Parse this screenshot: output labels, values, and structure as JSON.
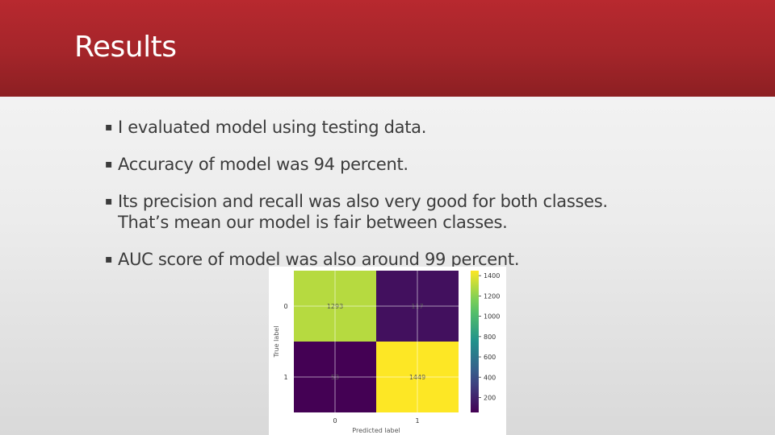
{
  "slide": {
    "title": "Results",
    "bullet_marker": "▪",
    "bullets": [
      {
        "lines": [
          "I evaluated model using testing data."
        ]
      },
      {
        "lines": [
          "Accuracy of model was 94 percent."
        ]
      },
      {
        "lines": [
          "Its precision and recall was also very good for both classes.",
          "That’s mean our model is fair between classes."
        ]
      },
      {
        "lines": [
          "AUC score of model was also around 99 percent."
        ]
      }
    ],
    "colors": {
      "header_top": "#b8292f",
      "header_bottom": "#8c1f22",
      "text": "#3b3b3b"
    }
  },
  "chart_data": {
    "type": "heatmap",
    "colormap": "viridis",
    "xlabel": "Predicted label",
    "ylabel": "True label",
    "x_categories": [
      "0",
      "1"
    ],
    "y_categories": [
      "0",
      "1"
    ],
    "matrix": [
      [
        1293,
        117
      ],
      [
        53,
        1449
      ]
    ],
    "cell_labels": [
      [
        "1293",
        "117"
      ],
      [
        "53",
        "1449"
      ]
    ],
    "colorbar": {
      "ticks": [
        200,
        400,
        600,
        800,
        1000,
        1200,
        1400
      ],
      "min": 53,
      "max": 1449
    },
    "grid": true
  }
}
